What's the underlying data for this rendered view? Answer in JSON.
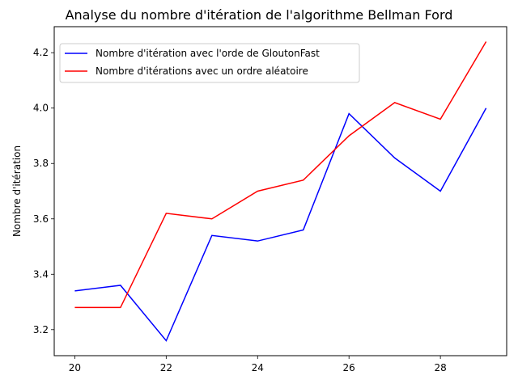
{
  "chart_data": {
    "type": "line",
    "title": "Analyse du nombre d'itération de l'algorithme Bellman Ford",
    "xlabel": "",
    "ylabel": "Nombre d'itération",
    "x": [
      20,
      21,
      22,
      23,
      24,
      25,
      26,
      27,
      28,
      29
    ],
    "xlim": [
      19.55,
      29.45
    ],
    "ylim": [
      3.106,
      4.294
    ],
    "xticks": [
      20,
      22,
      24,
      26,
      28
    ],
    "yticks": [
      3.2,
      3.4,
      3.6,
      3.8,
      4.0,
      4.2
    ],
    "ytick_labels": [
      "3.2",
      "3.4",
      "3.6",
      "3.8",
      "4.0",
      "4.2"
    ],
    "grid": false,
    "legend_position": "top-left",
    "series": [
      {
        "name": "Nombre d'itération avec l'orde de GloutonFast",
        "color": "#0000ff",
        "values": [
          3.34,
          3.36,
          3.16,
          3.54,
          3.52,
          3.56,
          3.98,
          3.82,
          3.7,
          4.0
        ]
      },
      {
        "name": "Nombre d'itérations avec un ordre aléatoire",
        "color": "#ff0000",
        "values": [
          3.28,
          3.28,
          3.62,
          3.6,
          3.7,
          3.74,
          3.9,
          4.02,
          3.96,
          4.24
        ]
      }
    ]
  }
}
